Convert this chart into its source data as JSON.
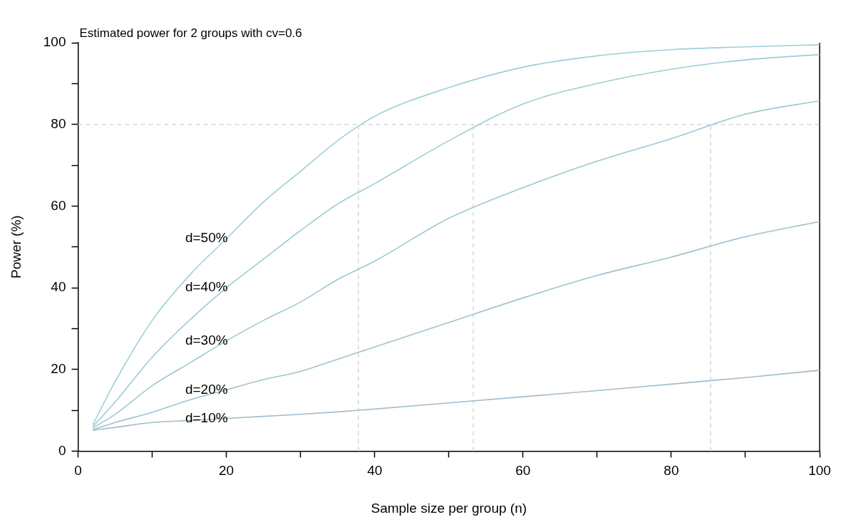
{
  "chart_data": {
    "type": "line",
    "title": "Estimated power for 2 groups with cv=0.6",
    "xlabel": "Sample size per group (n)",
    "ylabel": "Power (%)",
    "x": [
      2,
      5,
      10,
      15,
      20,
      25,
      30,
      35,
      40,
      50,
      60,
      70,
      80,
      90,
      100
    ],
    "series": [
      {
        "name": "d=50%",
        "color": "#9dd0d8",
        "values": [
          6.5,
          17,
          32,
          43,
          52,
          61,
          68.5,
          76,
          82,
          89,
          94,
          96.8,
          98.3,
          99,
          99.5
        ]
      },
      {
        "name": "d=40%",
        "color": "#9dcdd6",
        "values": [
          6,
          12,
          23,
          32,
          40,
          47,
          54,
          60.5,
          65.5,
          76,
          85,
          90,
          93.5,
          95.8,
          97.1
        ]
      },
      {
        "name": "d=30%",
        "color": "#9fc8d3",
        "values": [
          5.7,
          9,
          16,
          21.5,
          27,
          32,
          36.5,
          42,
          46.5,
          57,
          64.5,
          71,
          76.5,
          82.5,
          85.8
        ]
      },
      {
        "name": "d=20%",
        "color": "#a1c2d0",
        "values": [
          5.3,
          7,
          9.5,
          12.5,
          15,
          17.5,
          19.5,
          22.5,
          25.5,
          31.5,
          37.5,
          43,
          47.5,
          52.5,
          56.2
        ]
      },
      {
        "name": "d=10%",
        "color": "#a3bccc",
        "values": [
          5.1,
          5.8,
          7,
          7.5,
          8,
          8.5,
          9,
          9.6,
          10.3,
          11.8,
          13.3,
          14.8,
          16.4,
          18,
          19.8
        ]
      }
    ],
    "xlim": [
      0,
      100
    ],
    "ylim": [
      0,
      100
    ],
    "xticks": [
      0,
      {
        "value": 10,
        "label": null
      },
      20,
      {
        "value": 30,
        "label": null
      },
      40,
      {
        "value": 50,
        "label": null
      },
      60,
      {
        "value": 70,
        "label": null
      },
      80,
      {
        "value": 90,
        "label": null
      },
      100
    ],
    "yticks": [
      0,
      {
        "value": 10,
        "label": null
      },
      20,
      {
        "value": 30,
        "label": null
      },
      40,
      {
        "value": 50,
        "label": null
      },
      60,
      {
        "value": 70,
        "label": null
      },
      80,
      {
        "value": 90,
        "label": null
      },
      100
    ],
    "ref_lines": [
      {
        "axis": "y",
        "value": 80,
        "color": "#d4d4d4",
        "line_style": "dashed"
      },
      {
        "axis": "x",
        "value": 37.8,
        "color": "#d4d4d4",
        "line_style": "dashed"
      },
      {
        "axis": "x",
        "value": 53.3,
        "color": "#d4d4d4",
        "line_style": "dashed"
      },
      {
        "axis": "x",
        "value": 85.3,
        "color": "#d4d4d4",
        "line_style": "dashed"
      }
    ],
    "grid": false,
    "legend": false,
    "marker": "none",
    "line_style": "solid"
  }
}
